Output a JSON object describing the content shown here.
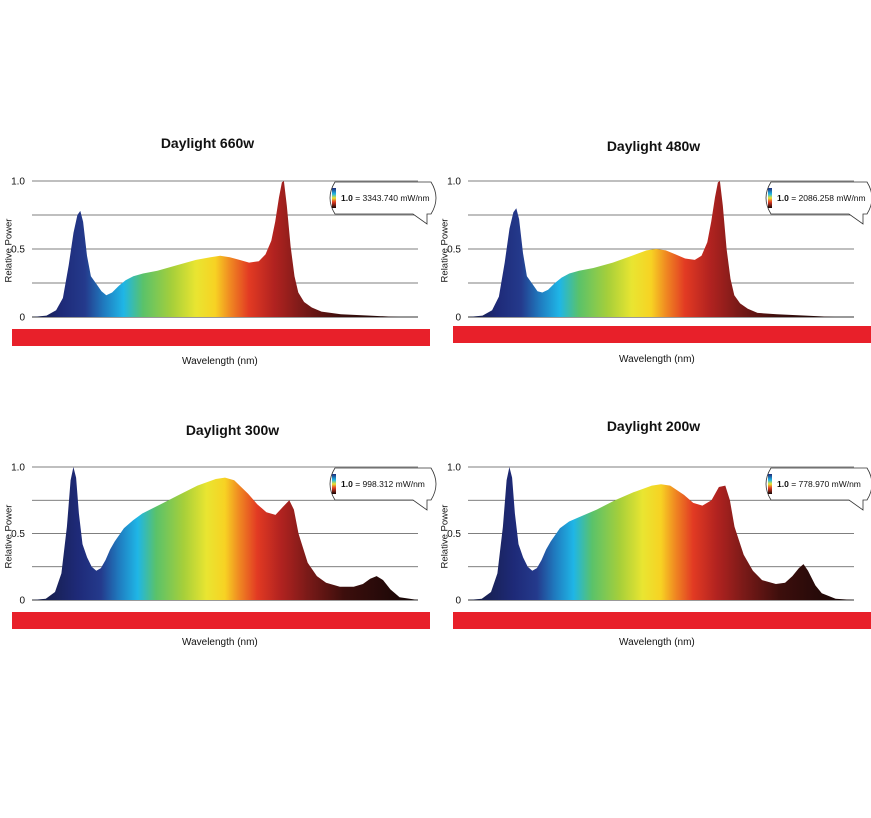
{
  "chart_data": [
    {
      "type": "area",
      "title": "Daylight 660w",
      "xlabel": "Wavelength (nm)",
      "ylabel": "Relative Power",
      "xlim": [
        400,
        800
      ],
      "ylim": [
        0,
        1.0
      ],
      "x_ticks": [
        "400",
        "500",
        "600",
        "700",
        "800"
      ],
      "y_ticks": [
        "0",
        "0.5",
        "1.0"
      ],
      "grid": true,
      "legend": {
        "value": "1.0",
        "text": "= 3343.740 mW/nm",
        "placement": "top-right"
      },
      "series": [
        {
          "x": [
            400,
            415,
            425,
            432,
            438,
            443,
            447,
            450,
            453,
            457,
            461,
            467,
            472,
            477,
            483,
            490,
            497,
            505,
            515,
            530,
            550,
            570,
            585,
            595,
            605,
            615,
            625,
            635,
            642,
            648,
            652,
            656,
            659,
            661,
            664,
            668,
            672,
            676,
            682,
            690,
            700,
            720,
            750,
            780,
            800
          ],
          "y": [
            0.0,
            0.01,
            0.05,
            0.14,
            0.38,
            0.62,
            0.75,
            0.78,
            0.7,
            0.45,
            0.3,
            0.24,
            0.19,
            0.16,
            0.18,
            0.23,
            0.27,
            0.3,
            0.32,
            0.34,
            0.38,
            0.42,
            0.44,
            0.45,
            0.44,
            0.42,
            0.4,
            0.41,
            0.46,
            0.56,
            0.7,
            0.88,
            0.99,
            1.0,
            0.82,
            0.52,
            0.3,
            0.18,
            0.11,
            0.07,
            0.04,
            0.02,
            0.01,
            0.0,
            0.0
          ]
        }
      ]
    },
    {
      "type": "area",
      "title": "Daylight 480w",
      "xlabel": "Wavelength (nm)",
      "ylabel": "Relative Power",
      "xlim": [
        400,
        800
      ],
      "ylim": [
        0,
        1.0
      ],
      "x_ticks": [
        "400",
        "500",
        "600",
        "700",
        "800"
      ],
      "y_ticks": [
        "0",
        "0.5",
        "1.0"
      ],
      "grid": true,
      "legend": {
        "value": "1.0",
        "text": "= 2086.258 mW/nm",
        "placement": "top-right"
      },
      "series": [
        {
          "x": [
            400,
            415,
            425,
            432,
            438,
            443,
            447,
            450,
            453,
            457,
            461,
            467,
            472,
            477,
            483,
            490,
            497,
            505,
            515,
            530,
            550,
            570,
            585,
            595,
            605,
            615,
            625,
            635,
            642,
            648,
            652,
            656,
            659,
            661,
            664,
            668,
            672,
            676,
            682,
            690,
            700,
            720,
            750,
            780,
            800
          ],
          "y": [
            0.0,
            0.01,
            0.05,
            0.15,
            0.4,
            0.65,
            0.77,
            0.8,
            0.72,
            0.47,
            0.3,
            0.24,
            0.19,
            0.18,
            0.2,
            0.25,
            0.29,
            0.32,
            0.34,
            0.36,
            0.4,
            0.45,
            0.49,
            0.5,
            0.49,
            0.46,
            0.43,
            0.42,
            0.45,
            0.55,
            0.7,
            0.88,
            0.99,
            1.0,
            0.82,
            0.5,
            0.28,
            0.16,
            0.1,
            0.06,
            0.03,
            0.02,
            0.01,
            0.0,
            0.0
          ]
        }
      ]
    },
    {
      "type": "area",
      "title": "Daylight 300w",
      "xlabel": "Wavelength (nm)",
      "ylabel": "Relative Power",
      "xlim": [
        380,
        800
      ],
      "ylim": [
        0,
        1.0
      ],
      "x_ticks": [
        "380",
        "485",
        "590",
        "695",
        "800"
      ],
      "y_ticks": [
        "0",
        "0.5",
        "1.0"
      ],
      "grid": true,
      "legend": {
        "value": "1.0",
        "text": "= 998.312 mW/nm",
        "placement": "top-right"
      },
      "series": [
        {
          "x": [
            380,
            395,
            405,
            412,
            418,
            422,
            425,
            428,
            431,
            435,
            440,
            445,
            450,
            455,
            460,
            465,
            470,
            480,
            490,
            500,
            520,
            540,
            560,
            580,
            590,
            600,
            615,
            625,
            635,
            645,
            653,
            660,
            665,
            670,
            680,
            690,
            700,
            715,
            730,
            740,
            748,
            755,
            762,
            770,
            780,
            800
          ],
          "y": [
            0.0,
            0.01,
            0.06,
            0.2,
            0.55,
            0.9,
            1.0,
            0.92,
            0.65,
            0.42,
            0.32,
            0.25,
            0.22,
            0.24,
            0.3,
            0.38,
            0.44,
            0.54,
            0.6,
            0.65,
            0.72,
            0.79,
            0.86,
            0.91,
            0.92,
            0.9,
            0.8,
            0.72,
            0.66,
            0.64,
            0.7,
            0.75,
            0.68,
            0.5,
            0.28,
            0.18,
            0.13,
            0.1,
            0.1,
            0.12,
            0.16,
            0.18,
            0.15,
            0.08,
            0.02,
            0.0
          ]
        }
      ]
    },
    {
      "type": "area",
      "title": "Daylight 200w",
      "xlabel": "Wavelength (nm)",
      "ylabel": "Relative Power",
      "xlim": [
        380,
        800
      ],
      "ylim": [
        0,
        1.0
      ],
      "x_ticks": [
        "380",
        "485",
        "590",
        "695",
        "800"
      ],
      "y_ticks": [
        "0",
        "0.5",
        "1.0"
      ],
      "grid": true,
      "legend": {
        "value": "1.0",
        "text": "= 778.970 mW/nm",
        "placement": "top-right"
      },
      "series": [
        {
          "x": [
            380,
            395,
            405,
            412,
            418,
            422,
            425,
            428,
            431,
            435,
            440,
            445,
            450,
            455,
            460,
            465,
            470,
            480,
            490,
            500,
            520,
            540,
            560,
            580,
            590,
            600,
            615,
            625,
            635,
            645,
            653,
            660,
            665,
            670,
            680,
            690,
            700,
            715,
            725,
            733,
            740,
            745,
            750,
            758,
            765,
            780,
            800
          ],
          "y": [
            0.0,
            0.01,
            0.06,
            0.2,
            0.55,
            0.9,
            1.0,
            0.92,
            0.65,
            0.42,
            0.32,
            0.25,
            0.22,
            0.24,
            0.3,
            0.38,
            0.44,
            0.54,
            0.59,
            0.62,
            0.68,
            0.75,
            0.81,
            0.86,
            0.87,
            0.86,
            0.79,
            0.73,
            0.71,
            0.75,
            0.85,
            0.86,
            0.75,
            0.55,
            0.34,
            0.22,
            0.15,
            0.12,
            0.13,
            0.18,
            0.24,
            0.27,
            0.22,
            0.11,
            0.05,
            0.01,
            0.0
          ]
        }
      ]
    }
  ]
}
